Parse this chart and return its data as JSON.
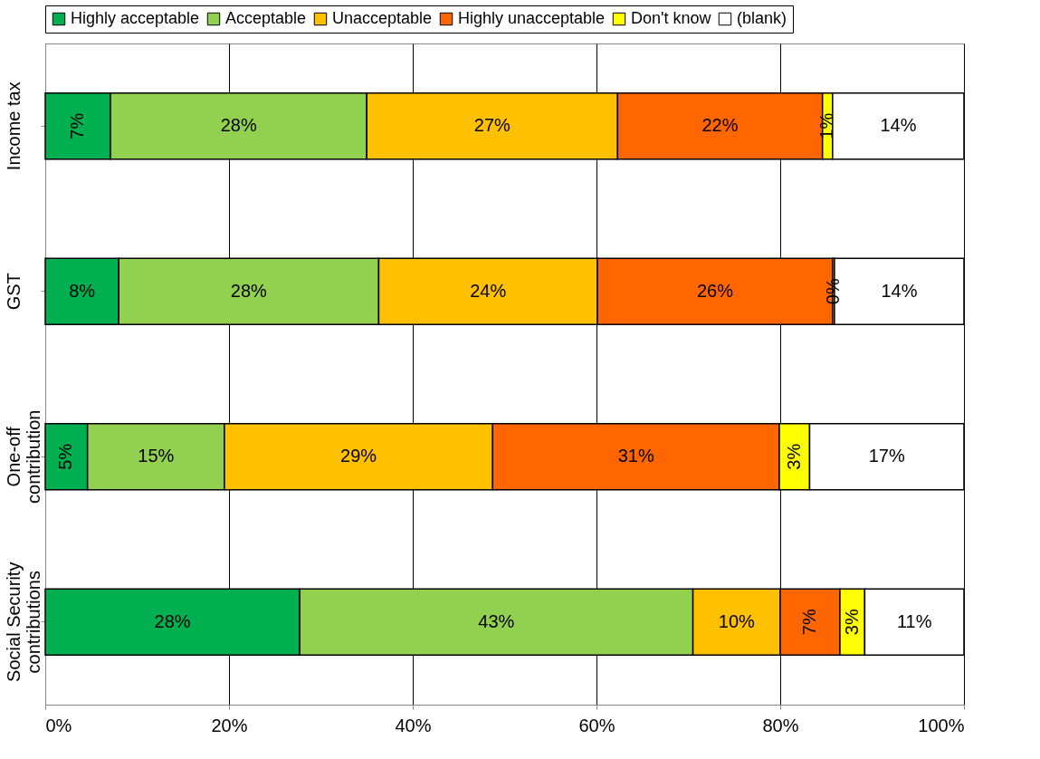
{
  "chart_data": {
    "type": "bar",
    "orientation": "horizontal",
    "stacked": true,
    "categories": [
      "Income tax",
      "GST",
      "One-off contribution",
      "Social Security contributions"
    ],
    "series": [
      {
        "name": "Highly acceptable",
        "color": "#00b050",
        "values": [
          7.1,
          8.0,
          4.6,
          27.7
        ],
        "value_labels": [
          "7%",
          "8%",
          "5%",
          "28%"
        ]
      },
      {
        "name": "Acceptable",
        "color": "#92d050",
        "values": [
          27.9,
          28.3,
          14.9,
          42.8
        ],
        "value_labels": [
          "28%",
          "28%",
          "15%",
          "43%"
        ]
      },
      {
        "name": "Unacceptable",
        "color": "#ffc000",
        "values": [
          27.3,
          23.8,
          29.2,
          9.5
        ],
        "value_labels": [
          "27%",
          "24%",
          "29%",
          "10%"
        ]
      },
      {
        "name": "Highly unacceptable",
        "color": "#ff6600",
        "values": [
          22.3,
          25.6,
          31.2,
          6.5
        ],
        "value_labels": [
          "22%",
          "26%",
          "31%",
          "7%"
        ]
      },
      {
        "name": "Don't know",
        "color": "#ffff00",
        "values": [
          1.1,
          0.2,
          3.3,
          2.7
        ],
        "value_labels": [
          "1%",
          "0%",
          "3%",
          "3%"
        ]
      },
      {
        "name": "(blank)",
        "color": "#ffffff",
        "values": [
          14.3,
          14.1,
          16.8,
          10.8
        ],
        "value_labels": [
          "14%",
          "14%",
          "17%",
          "11%"
        ]
      }
    ],
    "xlim": [
      0,
      100
    ],
    "xticks": [
      {
        "value": 0,
        "label": "0%"
      },
      {
        "value": 20,
        "label": "20%"
      },
      {
        "value": 40,
        "label": "40%"
      },
      {
        "value": 60,
        "label": "60%"
      },
      {
        "value": 80,
        "label": "80%"
      },
      {
        "value": 100,
        "label": "100%"
      }
    ],
    "grid": "x",
    "legend": "top"
  }
}
